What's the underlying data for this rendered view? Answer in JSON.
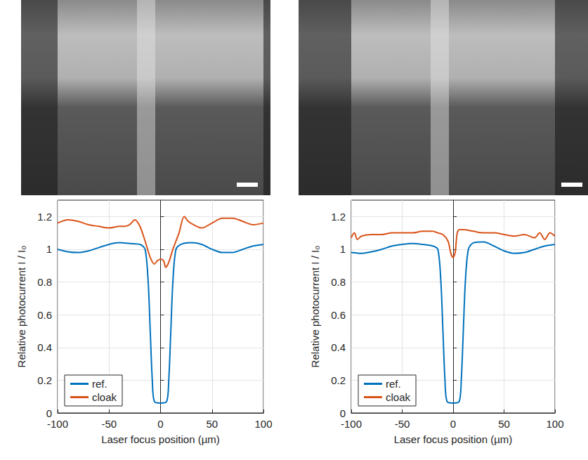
{
  "chart_data": [
    {
      "type": "line",
      "xlabel": "Laser focus position (µm)",
      "ylabel": "Relative photocurrent I / I₀",
      "xlim": [
        -100,
        100
      ],
      "xticks": [
        -100,
        -50,
        0,
        50,
        100
      ],
      "ylim": [
        0,
        1.3
      ],
      "yticks": [
        0,
        0.2,
        0.4,
        0.6,
        0.8,
        1,
        1.2
      ],
      "grid": true,
      "legend": "lower left",
      "series": [
        {
          "name": "ref.",
          "color": "#0072bd",
          "x": [
            -100,
            -90,
            -80,
            -70,
            -60,
            -50,
            -40,
            -30,
            -20,
            -15,
            -12,
            -10,
            -8,
            -6,
            0,
            6,
            8,
            10,
            12,
            15,
            20,
            30,
            40,
            50,
            60,
            70,
            80,
            90,
            100
          ],
          "values": [
            1.0,
            0.985,
            0.98,
            0.99,
            1.01,
            1.03,
            1.04,
            1.035,
            1.03,
            1.0,
            0.8,
            0.5,
            0.2,
            0.07,
            0.06,
            0.07,
            0.2,
            0.5,
            0.8,
            1.0,
            1.03,
            1.04,
            1.03,
            1.0,
            0.98,
            0.98,
            1.0,
            1.02,
            1.03
          ]
        },
        {
          "name": "cloak",
          "color": "#d95319",
          "x": [
            -100,
            -90,
            -80,
            -70,
            -60,
            -50,
            -40,
            -35,
            -30,
            -25,
            -20,
            -15,
            -10,
            -6,
            -3,
            0,
            3,
            5,
            8,
            12,
            18,
            23,
            27,
            32,
            40,
            50,
            60,
            70,
            80,
            90,
            100
          ],
          "values": [
            1.16,
            1.18,
            1.17,
            1.15,
            1.14,
            1.13,
            1.14,
            1.14,
            1.15,
            1.18,
            1.14,
            1.05,
            0.95,
            0.91,
            0.93,
            0.94,
            0.93,
            0.89,
            0.92,
            1.0,
            1.1,
            1.2,
            1.17,
            1.15,
            1.13,
            1.16,
            1.19,
            1.19,
            1.17,
            1.15,
            1.16
          ]
        }
      ]
    },
    {
      "type": "line",
      "xlabel": "Laser focus position (µm)",
      "ylabel": "Relative photocurrent I / I₀",
      "xlim": [
        -100,
        100
      ],
      "xticks": [
        -100,
        -50,
        0,
        50,
        100
      ],
      "ylim": [
        0,
        1.3
      ],
      "yticks": [
        0,
        0.2,
        0.4,
        0.6,
        0.8,
        1,
        1.2
      ],
      "grid": true,
      "legend": "lower left",
      "series": [
        {
          "name": "ref.",
          "color": "#0072bd",
          "x": [
            -100,
            -90,
            -80,
            -70,
            -60,
            -50,
            -40,
            -30,
            -20,
            -15,
            -12,
            -10,
            -8,
            -6,
            0,
            6,
            8,
            10,
            12,
            15,
            20,
            30,
            40,
            50,
            60,
            70,
            80,
            90,
            100
          ],
          "values": [
            0.98,
            0.975,
            0.985,
            1.0,
            1.02,
            1.03,
            1.035,
            1.03,
            1.02,
            1.0,
            0.8,
            0.5,
            0.2,
            0.07,
            0.06,
            0.07,
            0.2,
            0.5,
            0.8,
            1.0,
            1.04,
            1.045,
            1.02,
            0.99,
            0.975,
            0.98,
            1.0,
            1.02,
            1.03
          ]
        },
        {
          "name": "cloak",
          "color": "#d95319",
          "x": [
            -100,
            -97,
            -94,
            -90,
            -80,
            -70,
            -60,
            -50,
            -40,
            -30,
            -20,
            -15,
            -10,
            -5,
            -2,
            0,
            2,
            4,
            6,
            10,
            20,
            30,
            40,
            50,
            60,
            70,
            80,
            85,
            90,
            95,
            100
          ],
          "values": [
            1.07,
            1.1,
            1.06,
            1.08,
            1.09,
            1.09,
            1.1,
            1.1,
            1.1,
            1.11,
            1.11,
            1.1,
            1.09,
            1.05,
            0.97,
            0.95,
            0.98,
            1.1,
            1.12,
            1.12,
            1.11,
            1.1,
            1.1,
            1.09,
            1.08,
            1.09,
            1.07,
            1.1,
            1.06,
            1.1,
            1.08
          ]
        }
      ]
    }
  ]
}
